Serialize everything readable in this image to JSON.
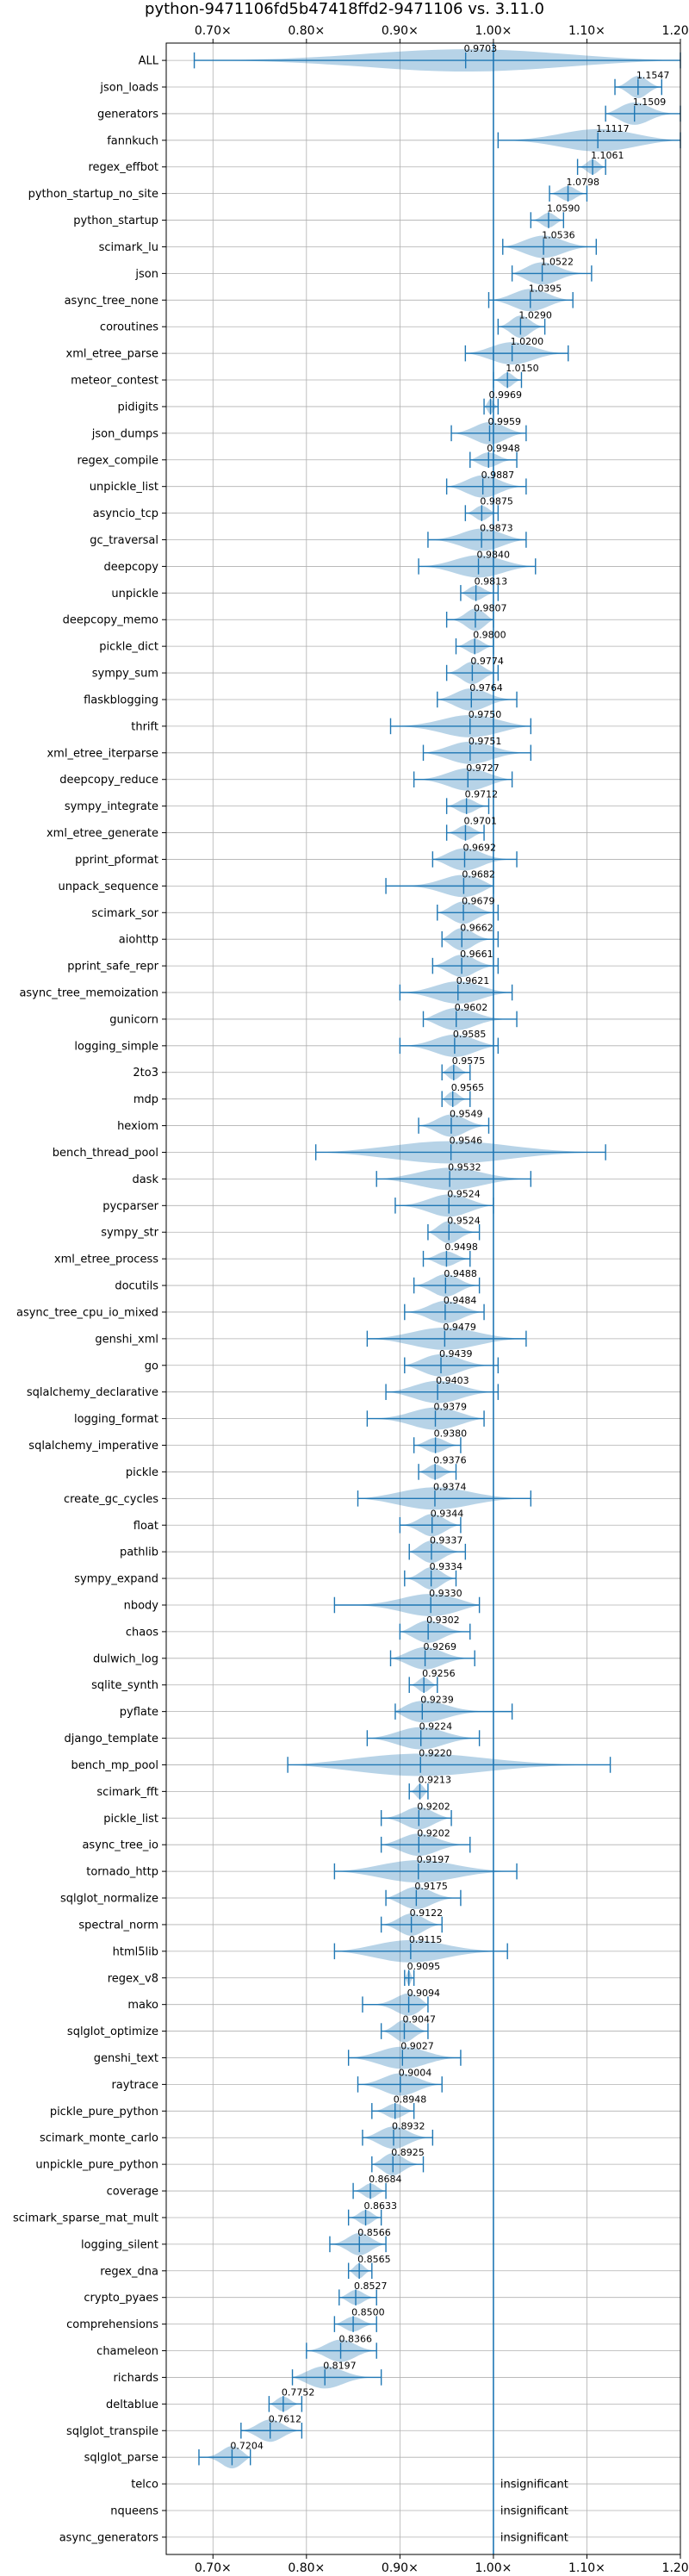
{
  "chart_data": {
    "type": "violin",
    "title": "python-9471106fd5b47418ffd2-9471106 vs. 3.11.0",
    "xlim": [
      0.65,
      1.2
    ],
    "xticks": [
      0.7,
      0.8,
      0.9,
      1.0,
      1.1,
      1.2
    ],
    "xtick_labels": [
      "0.70×",
      "0.80×",
      "0.90×",
      "1.00×",
      "1.10×",
      "1.20×"
    ],
    "reference_line": 1.0,
    "grid": true,
    "categories": [
      "ALL",
      "json_loads",
      "generators",
      "fannkuch",
      "regex_effbot",
      "python_startup_no_site",
      "python_startup",
      "scimark_lu",
      "json",
      "async_tree_none",
      "coroutines",
      "xml_etree_parse",
      "meteor_contest",
      "pidigits",
      "json_dumps",
      "regex_compile",
      "unpickle_list",
      "asyncio_tcp",
      "gc_traversal",
      "deepcopy",
      "unpickle",
      "deepcopy_memo",
      "pickle_dict",
      "sympy_sum",
      "flaskblogging",
      "thrift",
      "xml_etree_iterparse",
      "deepcopy_reduce",
      "sympy_integrate",
      "xml_etree_generate",
      "pprint_pformat",
      "unpack_sequence",
      "scimark_sor",
      "aiohttp",
      "pprint_safe_repr",
      "async_tree_memoization",
      "gunicorn",
      "logging_simple",
      "2to3",
      "mdp",
      "hexiom",
      "bench_thread_pool",
      "dask",
      "pycparser",
      "sympy_str",
      "xml_etree_process",
      "docutils",
      "async_tree_cpu_io_mixed",
      "genshi_xml",
      "go",
      "sqlalchemy_declarative",
      "logging_format",
      "sqlalchemy_imperative",
      "pickle",
      "create_gc_cycles",
      "float",
      "pathlib",
      "sympy_expand",
      "nbody",
      "chaos",
      "dulwich_log",
      "sqlite_synth",
      "pyflate",
      "django_template",
      "bench_mp_pool",
      "scimark_fft",
      "pickle_list",
      "async_tree_io",
      "tornado_http",
      "sqlglot_normalize",
      "spectral_norm",
      "html5lib",
      "regex_v8",
      "mako",
      "sqlglot_optimize",
      "genshi_text",
      "raytrace",
      "pickle_pure_python",
      "scimark_monte_carlo",
      "unpickle_pure_python",
      "coverage",
      "scimark_sparse_mat_mult",
      "logging_silent",
      "regex_dna",
      "crypto_pyaes",
      "comprehensions",
      "chameleon",
      "richards",
      "deltablue",
      "sqlglot_transpile",
      "sqlglot_parse",
      "telco",
      "nqueens",
      "async_generators"
    ],
    "values": [
      0.9703,
      1.1547,
      1.1509,
      1.1117,
      1.1061,
      1.0798,
      1.059,
      1.0536,
      1.0522,
      1.0395,
      1.029,
      1.02,
      1.015,
      0.9969,
      0.9959,
      0.9948,
      0.9887,
      0.9875,
      0.9873,
      0.984,
      0.9813,
      0.9807,
      0.98,
      0.9774,
      0.9764,
      0.975,
      0.9751,
      0.9727,
      0.9712,
      0.9701,
      0.9692,
      0.9682,
      0.9679,
      0.9662,
      0.9661,
      0.9621,
      0.9602,
      0.9585,
      0.9575,
      0.9565,
      0.9549,
      0.9546,
      0.9532,
      0.9524,
      0.9524,
      0.9498,
      0.9488,
      0.9484,
      0.9479,
      0.9439,
      0.9403,
      0.9379,
      0.938,
      0.9376,
      0.9374,
      0.9344,
      0.9337,
      0.9334,
      0.933,
      0.9302,
      0.9269,
      0.9256,
      0.9239,
      0.9224,
      0.922,
      0.9213,
      0.9202,
      0.9202,
      0.9197,
      0.9175,
      0.9122,
      0.9115,
      0.9095,
      0.9094,
      0.9047,
      0.9027,
      0.9004,
      0.8948,
      0.8932,
      0.8925,
      0.8684,
      0.8633,
      0.8566,
      0.8565,
      0.8527,
      0.85,
      0.8366,
      0.8197,
      0.7752,
      0.7612,
      0.7204,
      null,
      null,
      null
    ],
    "value_labels": [
      "0.9703",
      "1.1547",
      "1.1509",
      "1.1117",
      "1.1061",
      "1.0798",
      "1.0590",
      "1.0536",
      "1.0522",
      "1.0395",
      "1.0290",
      "1.0200",
      "1.0150",
      "0.9969",
      "0.9959",
      "0.9948",
      "0.9887",
      "0.9875",
      "0.9873",
      "0.9840",
      "0.9813",
      "0.9807",
      "0.9800",
      "0.9774",
      "0.9764",
      "0.9750",
      "0.9751",
      "0.9727",
      "0.9712",
      "0.9701",
      "0.9692",
      "0.9682",
      "0.9679",
      "0.9662",
      "0.9661",
      "0.9621",
      "0.9602",
      "0.9585",
      "0.9575",
      "0.9565",
      "0.9549",
      "0.9546",
      "0.9532",
      "0.9524",
      "0.9524",
      "0.9498",
      "0.9488",
      "0.9484",
      "0.9479",
      "0.9439",
      "0.9403",
      "0.9379",
      "0.9380",
      "0.9376",
      "0.9374",
      "0.9344",
      "0.9337",
      "0.9334",
      "0.9330",
      "0.9302",
      "0.9269",
      "0.9256",
      "0.9239",
      "0.9224",
      "0.9220",
      "0.9213",
      "0.9202",
      "0.9202",
      "0.9197",
      "0.9175",
      "0.9122",
      "0.9115",
      "0.9095",
      "0.9094",
      "0.9047",
      "0.9027",
      "0.9004",
      "0.8948",
      "0.8932",
      "0.8925",
      "0.8684",
      "0.8633",
      "0.8566",
      "0.8565",
      "0.8527",
      "0.8500",
      "0.8366",
      "0.8197",
      "0.7752",
      "0.7612",
      "0.7204",
      "insignificant",
      "insignificant",
      "insignificant"
    ],
    "ranges": [
      [
        0.68,
        1.2
      ],
      [
        1.13,
        1.18
      ],
      [
        1.12,
        1.2
      ],
      [
        1.005,
        1.2
      ],
      [
        1.09,
        1.12
      ],
      [
        1.06,
        1.1
      ],
      [
        1.04,
        1.075
      ],
      [
        1.01,
        1.11
      ],
      [
        1.02,
        1.105
      ],
      [
        0.995,
        1.085
      ],
      [
        1.005,
        1.055
      ],
      [
        0.97,
        1.08
      ],
      [
        1.0,
        1.03
      ],
      [
        0.99,
        1.005
      ],
      [
        0.955,
        1.035
      ],
      [
        0.975,
        1.025
      ],
      [
        0.95,
        1.035
      ],
      [
        0.97,
        1.005
      ],
      [
        0.93,
        1.035
      ],
      [
        0.92,
        1.045
      ],
      [
        0.965,
        1.005
      ],
      [
        0.95,
        1.0
      ],
      [
        0.96,
        1.0
      ],
      [
        0.95,
        1.005
      ],
      [
        0.94,
        1.025
      ],
      [
        0.89,
        1.04
      ],
      [
        0.925,
        1.04
      ],
      [
        0.915,
        1.02
      ],
      [
        0.95,
        0.995
      ],
      [
        0.95,
        0.99
      ],
      [
        0.935,
        1.025
      ],
      [
        0.885,
        1.0
      ],
      [
        0.94,
        1.005
      ],
      [
        0.945,
        1.005
      ],
      [
        0.935,
        1.005
      ],
      [
        0.9,
        1.02
      ],
      [
        0.925,
        1.025
      ],
      [
        0.9,
        1.005
      ],
      [
        0.945,
        0.975
      ],
      [
        0.945,
        0.975
      ],
      [
        0.92,
        0.995
      ],
      [
        0.81,
        1.12
      ],
      [
        0.875,
        1.04
      ],
      [
        0.895,
        1.0
      ],
      [
        0.93,
        0.985
      ],
      [
        0.925,
        0.975
      ],
      [
        0.915,
        0.985
      ],
      [
        0.905,
        0.99
      ],
      [
        0.865,
        1.035
      ],
      [
        0.905,
        1.005
      ],
      [
        0.885,
        1.005
      ],
      [
        0.865,
        0.99
      ],
      [
        0.915,
        0.965
      ],
      [
        0.92,
        0.96
      ],
      [
        0.855,
        1.04
      ],
      [
        0.9,
        0.965
      ],
      [
        0.91,
        0.97
      ],
      [
        0.905,
        0.96
      ],
      [
        0.83,
        0.985
      ],
      [
        0.9,
        0.975
      ],
      [
        0.89,
        0.98
      ],
      [
        0.91,
        0.94
      ],
      [
        0.895,
        1.02
      ],
      [
        0.865,
        0.985
      ],
      [
        0.78,
        1.125
      ],
      [
        0.91,
        0.93
      ],
      [
        0.88,
        0.955
      ],
      [
        0.88,
        0.975
      ],
      [
        0.83,
        1.025
      ],
      [
        0.885,
        0.965
      ],
      [
        0.88,
        0.945
      ],
      [
        0.83,
        1.015
      ],
      [
        0.905,
        0.915
      ],
      [
        0.86,
        0.93
      ],
      [
        0.88,
        0.93
      ],
      [
        0.845,
        0.965
      ],
      [
        0.855,
        0.945
      ],
      [
        0.87,
        0.915
      ],
      [
        0.86,
        0.935
      ],
      [
        0.87,
        0.925
      ],
      [
        0.85,
        0.885
      ],
      [
        0.845,
        0.88
      ],
      [
        0.825,
        0.885
      ],
      [
        0.845,
        0.87
      ],
      [
        0.835,
        0.875
      ],
      [
        0.83,
        0.875
      ],
      [
        0.8,
        0.875
      ],
      [
        0.785,
        0.88
      ],
      [
        0.76,
        0.795
      ],
      [
        0.73,
        0.795
      ],
      [
        0.685,
        0.74
      ],
      [
        null,
        null
      ],
      [
        null,
        null
      ],
      [
        null,
        null
      ]
    ]
  }
}
